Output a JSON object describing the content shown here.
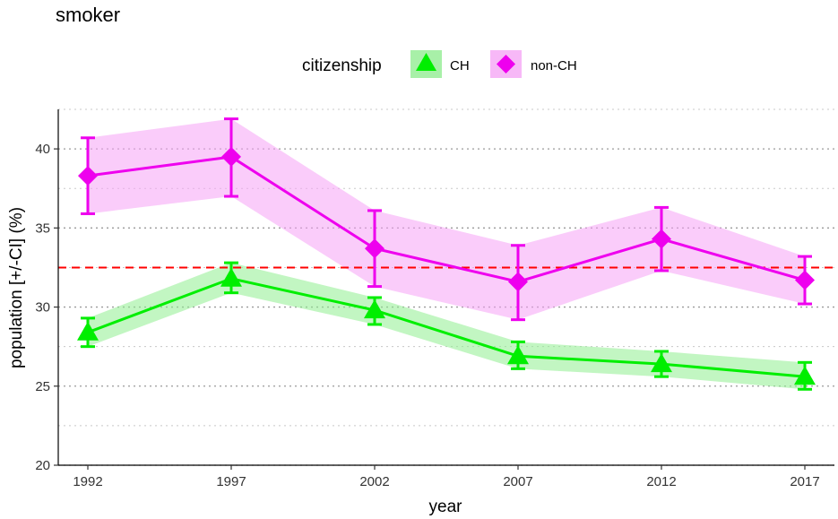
{
  "chart_data": {
    "type": "line",
    "title": "smoker",
    "xlabel": "year",
    "ylabel": "population [+/-CI] (%)",
    "x": [
      1992,
      1997,
      2002,
      2007,
      2012,
      2017
    ],
    "xticks": [
      "1992",
      "1997",
      "2002",
      "2007",
      "2012",
      "2017"
    ],
    "yticks": [
      "20",
      "25",
      "30",
      "35",
      "40"
    ],
    "ylim": [
      20,
      42.5
    ],
    "legend": {
      "title": "citizenship",
      "placement": "top-center"
    },
    "reference_line": {
      "y": 32.5,
      "color": "#ff0000",
      "style": "dashed"
    },
    "series": [
      {
        "name": "CH",
        "marker": "triangle",
        "color": "#00ee00",
        "band_color": "#90ee90",
        "values": [
          28.4,
          31.8,
          29.8,
          26.9,
          26.4,
          25.6
        ],
        "lower": [
          27.5,
          30.9,
          28.9,
          26.1,
          25.6,
          24.8
        ],
        "upper": [
          29.3,
          32.8,
          30.6,
          27.8,
          27.2,
          26.5
        ]
      },
      {
        "name": "non-CH",
        "marker": "diamond",
        "color": "#ee00ee",
        "band_color": "#f5a3f5",
        "values": [
          38.3,
          39.5,
          33.7,
          31.6,
          34.3,
          31.7
        ],
        "lower": [
          35.9,
          37.0,
          31.3,
          29.2,
          32.3,
          30.2
        ],
        "upper": [
          40.7,
          41.9,
          36.1,
          33.9,
          36.3,
          33.2
        ]
      }
    ]
  }
}
